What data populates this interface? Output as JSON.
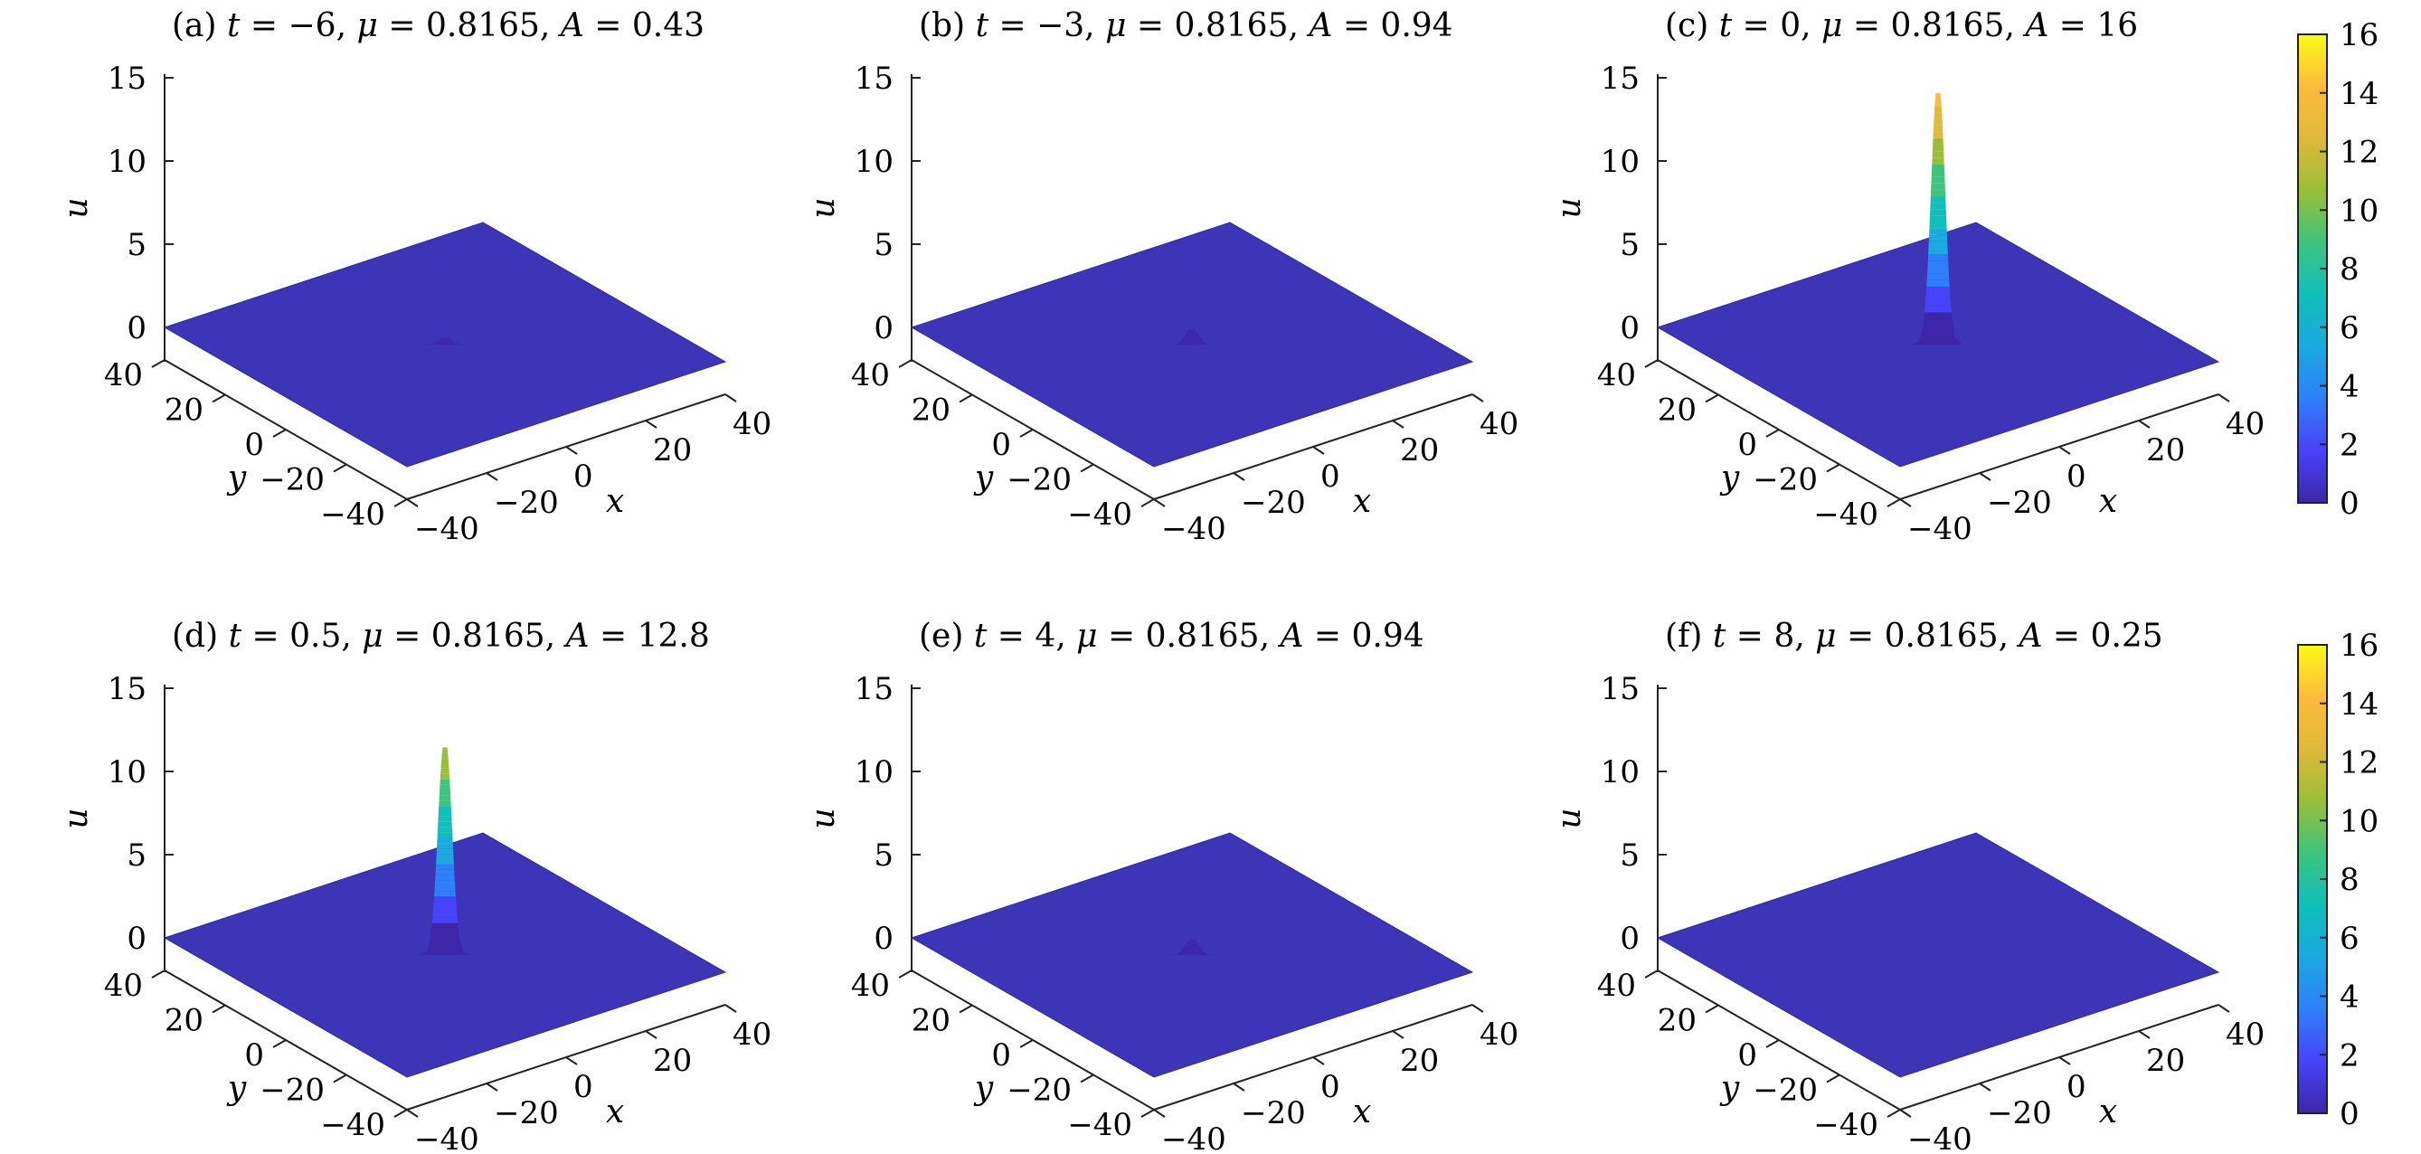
{
  "figure": {
    "colorbar_ticks": [
      "0",
      "2",
      "4",
      "6",
      "8",
      "10",
      "12",
      "14",
      "16"
    ],
    "colorbar_range": [
      0,
      16
    ],
    "colormap": [
      "#3e26a8",
      "#4743f8",
      "#2f7ff8",
      "#1aa9e0",
      "#0fbfb9",
      "#3ec47d",
      "#99bf3a",
      "#e0b93a",
      "#fdbb3c",
      "#f9fb15"
    ],
    "surface_color": "#3d34b8",
    "surface_edge": "#2f2aa0"
  },
  "chart_data": [
    {
      "type": "surface3d",
      "label": "(a)",
      "t": "−6",
      "mu": "0.8165",
      "A": "0.43",
      "peak": 0.43,
      "zlabel": "u",
      "xlabel": "x",
      "ylabel": "y",
      "zlim": [
        0,
        15
      ],
      "xlim": [
        -40,
        40
      ],
      "ylim": [
        -40,
        40
      ],
      "z_ticks": [
        "0",
        "5",
        "10",
        "15"
      ],
      "x_ticks": [
        "−40",
        "−20",
        "0",
        "20",
        "40"
      ],
      "y_ticks": [
        "−40",
        "−20",
        "0",
        "20",
        "40"
      ]
    },
    {
      "type": "surface3d",
      "label": "(b)",
      "t": "−3",
      "mu": "0.8165",
      "A": "0.94",
      "peak": 0.94,
      "zlabel": "u",
      "xlabel": "x",
      "ylabel": "y",
      "zlim": [
        0,
        15
      ],
      "xlim": [
        -40,
        40
      ],
      "ylim": [
        -40,
        40
      ],
      "z_ticks": [
        "0",
        "5",
        "10",
        "15"
      ],
      "x_ticks": [
        "−40",
        "−20",
        "0",
        "20",
        "40"
      ],
      "y_ticks": [
        "−40",
        "−20",
        "0",
        "20",
        "40"
      ]
    },
    {
      "type": "surface3d",
      "label": "(c)",
      "t": "0",
      "mu": "0.8165",
      "A": "16",
      "peak": 16,
      "zlabel": "u",
      "xlabel": "x",
      "ylabel": "y",
      "zlim": [
        0,
        15
      ],
      "xlim": [
        -40,
        40
      ],
      "ylim": [
        -40,
        40
      ],
      "z_ticks": [
        "0",
        "5",
        "10",
        "15"
      ],
      "x_ticks": [
        "−40",
        "−20",
        "0",
        "20",
        "40"
      ],
      "y_ticks": [
        "−40",
        "−20",
        "0",
        "20",
        "40"
      ]
    },
    {
      "type": "surface3d",
      "label": "(d)",
      "t": "0.5",
      "mu": "0.8165",
      "A": "12.8",
      "peak": 12.8,
      "zlabel": "u",
      "xlabel": "x",
      "ylabel": "y",
      "zlim": [
        0,
        15
      ],
      "xlim": [
        -40,
        40
      ],
      "ylim": [
        -40,
        40
      ],
      "z_ticks": [
        "0",
        "5",
        "10",
        "15"
      ],
      "x_ticks": [
        "−40",
        "−20",
        "0",
        "20",
        "40"
      ],
      "y_ticks": [
        "−40",
        "−20",
        "0",
        "20",
        "40"
      ]
    },
    {
      "type": "surface3d",
      "label": "(e)",
      "t": "4",
      "mu": "0.8165",
      "A": "0.94",
      "peak": 0.94,
      "zlabel": "u",
      "xlabel": "x",
      "ylabel": "y",
      "zlim": [
        0,
        15
      ],
      "xlim": [
        -40,
        40
      ],
      "ylim": [
        -40,
        40
      ],
      "z_ticks": [
        "0",
        "5",
        "10",
        "15"
      ],
      "x_ticks": [
        "−40",
        "−20",
        "0",
        "20",
        "40"
      ],
      "y_ticks": [
        "−40",
        "−20",
        "0",
        "20",
        "40"
      ]
    },
    {
      "type": "surface3d",
      "label": "(f)",
      "t": "8",
      "mu": "0.8165",
      "A": "0.25",
      "peak": 0.25,
      "zlabel": "u",
      "xlabel": "x",
      "ylabel": "y",
      "zlim": [
        0,
        15
      ],
      "xlim": [
        -40,
        40
      ],
      "ylim": [
        -40,
        40
      ],
      "z_ticks": [
        "0",
        "5",
        "10",
        "15"
      ],
      "x_ticks": [
        "−40",
        "−20",
        "0",
        "20",
        "40"
      ],
      "y_ticks": [
        "−40",
        "−20",
        "0",
        "20",
        "40"
      ]
    }
  ]
}
